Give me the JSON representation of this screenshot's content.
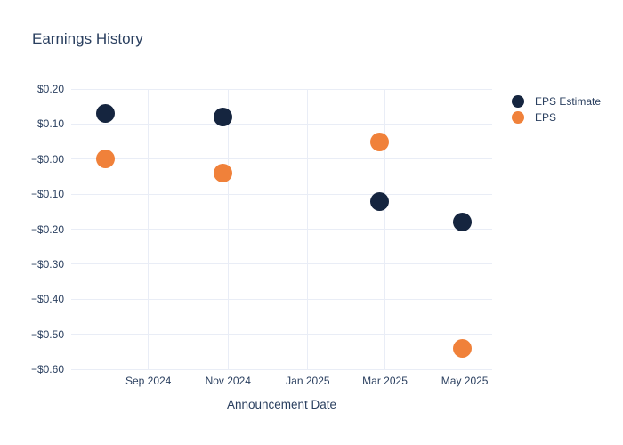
{
  "chart_data": {
    "type": "scatter",
    "title": "Earnings History",
    "xlabel": "Announcement Date",
    "ylabel": "",
    "grid": true,
    "legend_position": "right-top",
    "colors": {
      "eps_estimate": "#15253f",
      "eps": "#f0813a",
      "text": "#2a3f5f",
      "gridline": "#e9edf6"
    },
    "x_axis": {
      "range_dates": [
        "2024-07-04",
        "2025-05-22"
      ],
      "ticks": [
        {
          "date": "2024-09-01",
          "label": "Sep 2024"
        },
        {
          "date": "2024-11-01",
          "label": "Nov 2024"
        },
        {
          "date": "2025-01-01",
          "label": "Jan 2025"
        },
        {
          "date": "2025-03-01",
          "label": "Mar 2025"
        },
        {
          "date": "2025-05-01",
          "label": "May 2025"
        }
      ]
    },
    "y_axis": {
      "range": [
        -0.6,
        0.2
      ],
      "ticks": [
        {
          "value": 0.2,
          "label": "$0.20"
        },
        {
          "value": 0.1,
          "label": "$0.10"
        },
        {
          "value": 0.0,
          "label": "−$0.00"
        },
        {
          "value": -0.1,
          "label": "−$0.10"
        },
        {
          "value": -0.2,
          "label": "−$0.20"
        },
        {
          "value": -0.3,
          "label": "−$0.30"
        },
        {
          "value": -0.4,
          "label": "−$0.40"
        },
        {
          "value": -0.5,
          "label": "−$0.50"
        },
        {
          "value": -0.6,
          "label": "−$0.60"
        }
      ]
    },
    "series": [
      {
        "name": "EPS Estimate",
        "slug": "eps-estimate",
        "color_key": "eps_estimate",
        "points": [
          {
            "date": "2024-07-30",
            "value": 0.13
          },
          {
            "date": "2024-10-28",
            "value": 0.12
          },
          {
            "date": "2025-02-25",
            "value": -0.12
          },
          {
            "date": "2025-04-29",
            "value": -0.18
          }
        ]
      },
      {
        "name": "EPS",
        "slug": "eps",
        "color_key": "eps",
        "points": [
          {
            "date": "2024-07-30",
            "value": 0.0
          },
          {
            "date": "2024-10-28",
            "value": -0.04
          },
          {
            "date": "2025-02-25",
            "value": 0.05
          },
          {
            "date": "2025-04-29",
            "value": -0.54
          }
        ]
      }
    ]
  }
}
